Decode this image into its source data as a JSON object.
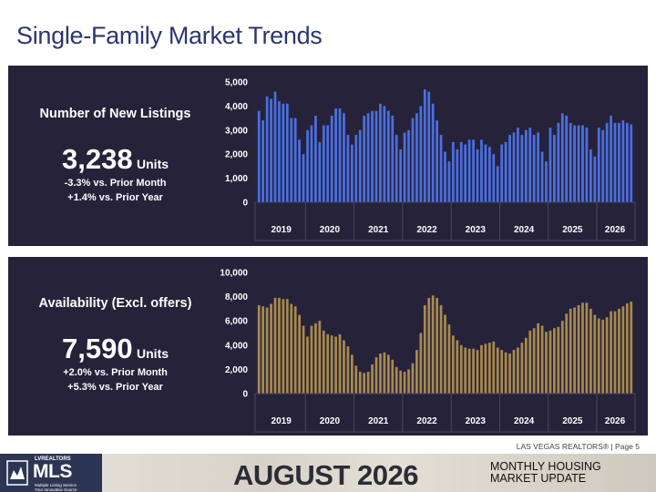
{
  "page": {
    "title": "Single-Family Market Trends",
    "footer_note": "LAS VEGAS REALTORS® | Page 5",
    "footer_month": "AUGUST 2026",
    "footer_update_line1": "MONTHLY HOUSING",
    "footer_update_line2": "MARKET UPDATE",
    "logo_top": "LVREALTORS",
    "logo_main": "MLS",
    "logo_sub1": "Multiple Listing Service",
    "logo_sub2": "Your Innovative Source"
  },
  "panels": [
    {
      "title": "Number of New Listings",
      "value": "3,238",
      "unit": "Units",
      "change_month": "-3.3% vs. Prior Month",
      "change_year": "+1.4% vs. Prior Year"
    },
    {
      "title": "Availability (Excl. offers)",
      "value": "7,590",
      "unit": "Units",
      "change_month": "+2.0% vs. Prior Month",
      "change_year": "+5.3% vs. Prior Year"
    }
  ],
  "colors": {
    "panel_bg": "#26223a",
    "bar_listings": "#4a6fe0",
    "bar_availability": "#a88a4e",
    "title_color": "#2b3670"
  },
  "chart_data": [
    {
      "type": "bar",
      "title": "Number of New Listings",
      "year_labels": [
        "2019",
        "2020",
        "2021",
        "2022",
        "2023",
        "2024",
        "2025",
        "2026"
      ],
      "ylim": [
        0,
        5000
      ],
      "yticks": [
        "0",
        "1,000",
        "2,000",
        "3,000",
        "4,000",
        "5,000"
      ],
      "ytick_values": [
        0,
        1000,
        2000,
        3000,
        4000,
        5000
      ],
      "grid": false,
      "values": [
        3800,
        3400,
        4400,
        4300,
        4600,
        4200,
        4100,
        4100,
        3500,
        3500,
        2600,
        2000,
        3000,
        3200,
        3600,
        2500,
        3200,
        3200,
        3600,
        3900,
        3900,
        3700,
        2800,
        2400,
        2800,
        3000,
        3600,
        3700,
        3800,
        3800,
        4100,
        4000,
        3800,
        3600,
        2800,
        2200,
        2900,
        3000,
        3500,
        3700,
        4000,
        4700,
        4600,
        4100,
        3400,
        2800,
        2100,
        1700,
        2500,
        2200,
        2500,
        2400,
        2600,
        2600,
        2200,
        2600,
        2400,
        2300,
        2000,
        1500,
        2400,
        2500,
        2800,
        2900,
        3100,
        2800,
        3000,
        3100,
        2800,
        2900,
        2100,
        1700,
        3100,
        2800,
        3300,
        3700,
        3600,
        3300,
        3200,
        3200,
        3200,
        3100,
        2200,
        1900,
        3100,
        3000,
        3300,
        3600,
        3300,
        3300,
        3400,
        3300,
        3238
      ]
    },
    {
      "type": "bar",
      "title": "Availability (Excl. offers)",
      "year_labels": [
        "2019",
        "2020",
        "2021",
        "2022",
        "2023",
        "2024",
        "2025",
        "2026"
      ],
      "ylim": [
        0,
        10000
      ],
      "yticks": [
        "0",
        "2,000",
        "4,000",
        "6,000",
        "8,000",
        "10,000"
      ],
      "ytick_values": [
        0,
        2000,
        4000,
        6000,
        8000,
        10000
      ],
      "grid": false,
      "values": [
        7300,
        7200,
        7100,
        7400,
        7900,
        7900,
        7800,
        7800,
        7400,
        7200,
        6500,
        5600,
        4700,
        5600,
        5800,
        6000,
        5200,
        4900,
        4800,
        4700,
        4900,
        4400,
        3900,
        3200,
        2300,
        1800,
        1700,
        1800,
        2400,
        3000,
        3300,
        3400,
        3200,
        2800,
        2200,
        1900,
        1800,
        2000,
        2500,
        3600,
        5000,
        7300,
        7900,
        8100,
        7900,
        7300,
        6500,
        5700,
        4800,
        4400,
        4000,
        3800,
        3700,
        3700,
        3600,
        4000,
        4100,
        4200,
        4300,
        3800,
        3600,
        3400,
        3300,
        3600,
        3800,
        4200,
        4600,
        5200,
        5400,
        5800,
        5600,
        5100,
        5200,
        5400,
        5500,
        6000,
        6600,
        7000,
        7100,
        7300,
        7500,
        7500,
        7000,
        6500,
        6200,
        6100,
        6300,
        6800,
        6800,
        7000,
        7200,
        7441,
        7590
      ]
    }
  ]
}
